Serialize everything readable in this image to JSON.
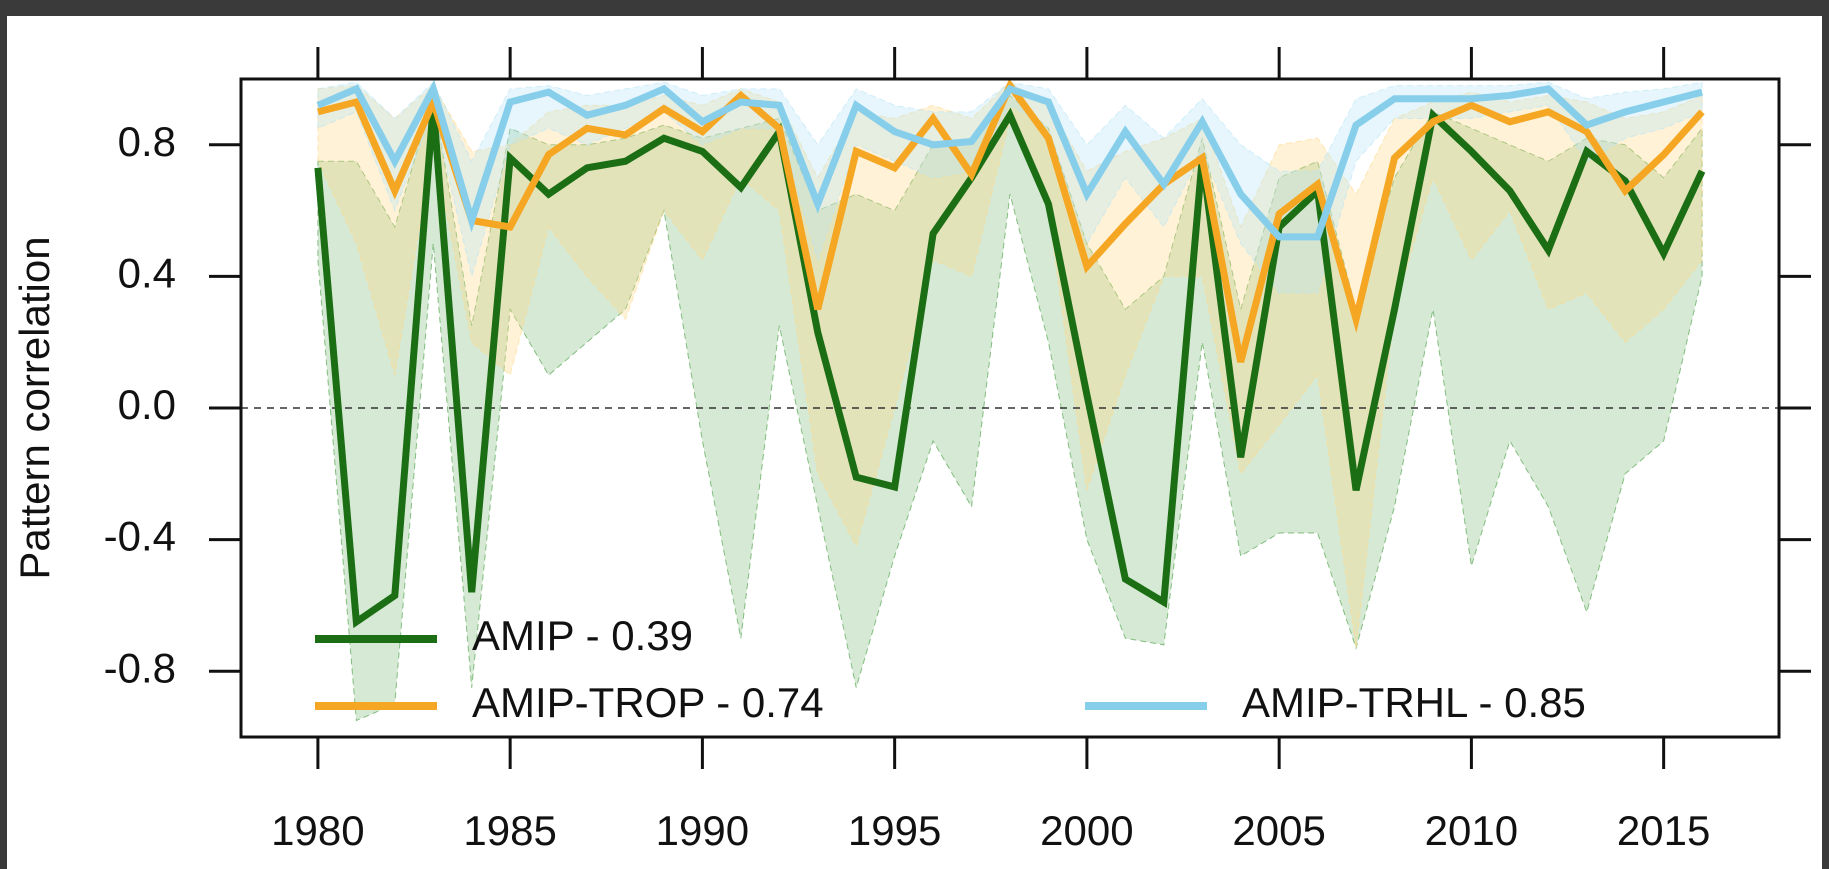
{
  "chart_data": {
    "type": "line",
    "ylabel": "Pattern correlation",
    "x": [
      1980,
      1981,
      1982,
      1983,
      1984,
      1985,
      1986,
      1987,
      1988,
      1989,
      1990,
      1991,
      1992,
      1993,
      1994,
      1995,
      1996,
      1997,
      1998,
      1999,
      2000,
      2001,
      2002,
      2003,
      2004,
      2005,
      2006,
      2007,
      2008,
      2009,
      2010,
      2011,
      2012,
      2013,
      2014,
      2015,
      2016
    ],
    "xlim": [
      1978,
      2018
    ],
    "xticks": [
      1980,
      1985,
      1990,
      1995,
      2000,
      2005,
      2010,
      2015
    ],
    "ylim": [
      -1,
      1
    ],
    "yticks": [
      -0.8,
      -0.4,
      {
        "value": 0,
        "label": "0.0"
      },
      0.4,
      0.8
    ],
    "reference_line": 0,
    "series": [
      {
        "name": "AMIP - 0.39",
        "color": "#1c6e14",
        "band_color": "#3f9a3a",
        "values": [
          0.73,
          -0.65,
          -0.57,
          0.92,
          -0.56,
          0.76,
          0.65,
          0.73,
          0.75,
          0.82,
          0.78,
          0.67,
          0.84,
          0.23,
          -0.21,
          -0.24,
          0.53,
          0.7,
          0.89,
          0.62,
          0.04,
          -0.52,
          -0.59,
          0.76,
          -0.15,
          0.55,
          0.66,
          -0.25,
          0.3,
          0.89,
          0.78,
          0.66,
          0.48,
          0.78,
          0.69,
          0.47,
          0.72
        ],
        "lower": [
          0.45,
          -0.95,
          -0.9,
          0.5,
          -0.85,
          0.3,
          0.1,
          0.2,
          0.3,
          0.6,
          -0.1,
          -0.7,
          0.25,
          -0.3,
          -0.85,
          -0.45,
          -0.1,
          -0.3,
          0.65,
          0.2,
          -0.4,
          -0.7,
          -0.72,
          0.2,
          -0.45,
          -0.38,
          -0.38,
          -0.73,
          -0.3,
          0.3,
          -0.48,
          -0.1,
          -0.3,
          -0.62,
          -0.2,
          -0.1,
          0.4
        ],
        "upper": [
          0.75,
          0.75,
          0.55,
          0.95,
          0.25,
          0.85,
          0.8,
          0.8,
          0.82,
          0.86,
          0.82,
          0.85,
          0.88,
          0.6,
          0.65,
          0.6,
          0.8,
          0.82,
          0.95,
          0.85,
          0.5,
          0.3,
          0.4,
          0.82,
          0.3,
          0.7,
          0.75,
          0.3,
          0.7,
          0.9,
          0.85,
          0.8,
          0.75,
          0.82,
          0.8,
          0.7,
          0.85
        ]
      },
      {
        "name": "AMIP-TROP - 0.74",
        "color": "#f5a623",
        "band_color": "#ffd98a",
        "values": [
          0.9,
          0.93,
          0.66,
          0.93,
          0.57,
          0.55,
          0.77,
          0.85,
          0.83,
          0.91,
          0.84,
          0.95,
          0.85,
          0.3,
          0.78,
          0.73,
          0.88,
          0.71,
          0.98,
          0.82,
          0.43,
          0.56,
          0.68,
          0.76,
          0.14,
          0.59,
          0.68,
          0.27,
          0.76,
          0.87,
          0.92,
          0.87,
          0.9,
          0.84,
          0.66,
          0.77,
          0.9
        ],
        "lower": [
          0.75,
          0.5,
          0.1,
          0.8,
          0.2,
          0.1,
          0.55,
          0.4,
          0.27,
          0.6,
          0.45,
          0.7,
          0.6,
          -0.2,
          -0.42,
          0.0,
          0.45,
          0.4,
          0.88,
          0.6,
          -0.25,
          0.1,
          0.4,
          0.4,
          -0.2,
          -0.05,
          0.1,
          -0.73,
          0.3,
          0.7,
          0.45,
          0.6,
          0.3,
          0.35,
          0.2,
          0.3,
          0.45
        ],
        "upper": [
          0.97,
          0.98,
          0.88,
          0.98,
          0.78,
          0.8,
          0.9,
          0.92,
          0.92,
          0.95,
          0.92,
          0.97,
          0.93,
          0.7,
          0.9,
          0.88,
          0.92,
          0.88,
          0.99,
          0.92,
          0.72,
          0.78,
          0.82,
          0.88,
          0.55,
          0.8,
          0.82,
          0.65,
          0.88,
          0.93,
          0.96,
          0.93,
          0.95,
          0.93,
          0.88,
          0.9,
          0.95
        ]
      },
      {
        "name": "AMIP-TRHL - 0.85",
        "color": "#87ceeb",
        "band_color": "#b8e4f5",
        "values": [
          0.92,
          0.97,
          0.75,
          0.97,
          0.57,
          0.93,
          0.96,
          0.89,
          0.92,
          0.97,
          0.87,
          0.93,
          0.92,
          0.62,
          0.92,
          0.84,
          0.8,
          0.81,
          0.97,
          0.93,
          0.65,
          0.84,
          0.68,
          0.87,
          0.65,
          0.52,
          0.52,
          0.86,
          0.94,
          0.94,
          0.94,
          0.95,
          0.97,
          0.86,
          0.9,
          0.93,
          0.96
        ],
        "lower": [
          0.85,
          0.9,
          0.6,
          0.9,
          0.4,
          0.8,
          0.85,
          0.8,
          0.85,
          0.9,
          0.8,
          0.85,
          0.85,
          0.45,
          0.8,
          0.75,
          0.7,
          0.72,
          0.92,
          0.85,
          0.5,
          0.7,
          0.55,
          0.78,
          0.5,
          0.35,
          0.35,
          0.75,
          0.88,
          0.88,
          0.88,
          0.9,
          0.92,
          0.75,
          0.82,
          0.85,
          0.9
        ],
        "upper": [
          0.97,
          0.99,
          0.88,
          0.99,
          0.75,
          0.97,
          0.98,
          0.95,
          0.97,
          0.99,
          0.95,
          0.97,
          0.97,
          0.8,
          0.97,
          0.92,
          0.9,
          0.9,
          0.99,
          0.97,
          0.8,
          0.92,
          0.82,
          0.94,
          0.8,
          0.72,
          0.72,
          0.94,
          0.98,
          0.98,
          0.98,
          0.98,
          0.99,
          0.94,
          0.96,
          0.97,
          0.99
        ]
      }
    ]
  }
}
